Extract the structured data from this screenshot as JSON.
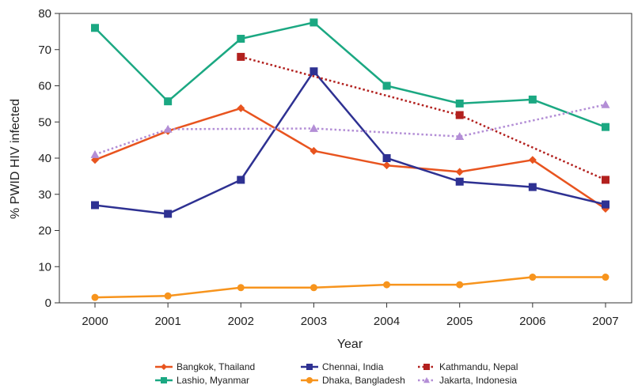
{
  "chart_data": {
    "type": "line",
    "title": "",
    "xlabel": "Year",
    "ylabel": "% PWID HIV infected",
    "x": [
      2000,
      2001,
      2002,
      2003,
      2004,
      2005,
      2006,
      2007
    ],
    "ylim": [
      0,
      80
    ],
    "yticks": [
      0,
      10,
      20,
      30,
      40,
      50,
      60,
      70,
      80
    ],
    "grid": false,
    "legend_position": "bottom",
    "series": [
      {
        "name": "Bangkok, Thailand",
        "color": "#E8541F",
        "marker": "diamond",
        "style": "solid",
        "points": [
          [
            2000,
            39.5
          ],
          [
            2001,
            47.5
          ],
          [
            2002,
            53.8
          ],
          [
            2003,
            42
          ],
          [
            2004,
            38
          ],
          [
            2005,
            36.2
          ],
          [
            2006,
            39.5
          ],
          [
            2007,
            26
          ]
        ]
      },
      {
        "name": "Lashio, Myanmar",
        "color": "#1BA882",
        "marker": "square",
        "style": "solid",
        "points": [
          [
            2000,
            76
          ],
          [
            2001,
            55.7
          ],
          [
            2002,
            73
          ],
          [
            2003,
            77.5
          ],
          [
            2004,
            60
          ],
          [
            2005,
            55.1
          ],
          [
            2006,
            56.2
          ],
          [
            2007,
            48.6
          ]
        ]
      },
      {
        "name": "Chennai, India",
        "color": "#2E3192",
        "marker": "square",
        "style": "solid",
        "points": [
          [
            2000,
            27
          ],
          [
            2001,
            24.6
          ],
          [
            2002,
            34
          ],
          [
            2003,
            64
          ],
          [
            2004,
            40
          ],
          [
            2005,
            33.5
          ],
          [
            2006,
            32
          ],
          [
            2007,
            27.2
          ]
        ]
      },
      {
        "name": "Dhaka, Bangladesh",
        "color": "#F7941D",
        "marker": "circle",
        "style": "solid",
        "points": [
          [
            2000,
            1.5
          ],
          [
            2001,
            1.9
          ],
          [
            2002,
            4.2
          ],
          [
            2003,
            4.2
          ],
          [
            2004,
            5
          ],
          [
            2005,
            5
          ],
          [
            2006,
            7.1
          ],
          [
            2007,
            7.1
          ]
        ]
      },
      {
        "name": "Kathmandu, Nepal",
        "color": "#B2201E",
        "marker": "square",
        "style": "dotted",
        "points": [
          [
            2002,
            68
          ],
          [
            2005,
            51.9
          ],
          [
            2007,
            34
          ]
        ]
      },
      {
        "name": "Jakarta, Indonesia",
        "color": "#B38ED6",
        "marker": "triangle",
        "style": "dotted",
        "points": [
          [
            2000,
            41
          ],
          [
            2001,
            48
          ],
          [
            2003,
            48.2
          ],
          [
            2005,
            46
          ],
          [
            2007,
            54.8
          ]
        ]
      }
    ]
  }
}
